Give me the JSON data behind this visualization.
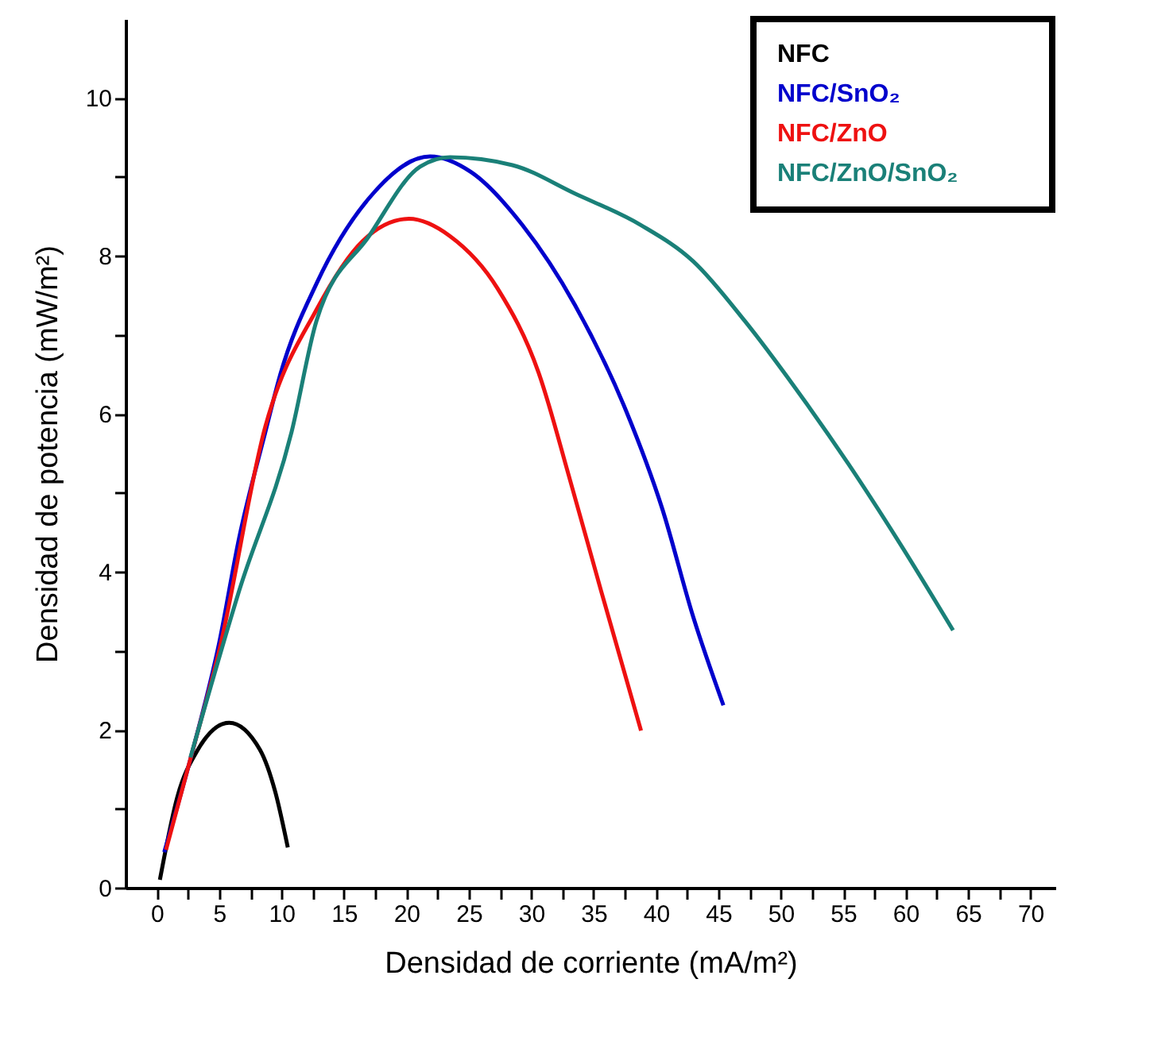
{
  "chart_data": {
    "type": "line",
    "xlabel": "Densidad de corriente (mA/m²)",
    "ylabel": "Densidad de potencia (mW/m²)",
    "xlim": [
      -2.5,
      72
    ],
    "ylim": [
      0,
      11
    ],
    "xticks": [
      0,
      {
        "value": 2.5,
        "label": null
      },
      5,
      {
        "value": 7.5,
        "label": null
      },
      10,
      {
        "value": 12.5,
        "label": null
      },
      15,
      {
        "value": 17.5,
        "label": null
      },
      20,
      {
        "value": 22.5,
        "label": null
      },
      25,
      {
        "value": 27.5,
        "label": null
      },
      30,
      {
        "value": 32.5,
        "label": null
      },
      35,
      {
        "value": 37.5,
        "label": null
      },
      40,
      {
        "value": 42.5,
        "label": null
      },
      45,
      {
        "value": 47.5,
        "label": null
      },
      50,
      {
        "value": 52.5,
        "label": null
      },
      55,
      {
        "value": 57.5,
        "label": null
      },
      60,
      {
        "value": 62.5,
        "label": null
      },
      65,
      {
        "value": 67.5,
        "label": null
      },
      70
    ],
    "yticks": [
      0,
      {
        "value": 1,
        "label": null
      },
      2,
      {
        "value": 3,
        "label": null
      },
      4,
      {
        "value": 5,
        "label": null
      },
      6,
      {
        "value": 7,
        "label": null
      },
      8,
      {
        "value": 9,
        "label": null
      },
      10
    ],
    "grid": false,
    "legend": "top right",
    "marker": "none",
    "line_style": "solid",
    "series": [
      {
        "name": "NFC",
        "color": "#000000",
        "x": [
          0.25,
          1.65,
          3.3,
          5.8,
          8.26,
          9.5,
          10.5
        ],
        "values": [
          0.1,
          1.15,
          1.75,
          2.09,
          1.75,
          1.21,
          0.51
        ]
      },
      {
        "name": "NFC/SnO₂",
        "color": "#0000cc",
        "x": [
          0.6,
          2.9,
          5.0,
          6.6,
          8.7,
          9.9,
          12.8,
          17,
          21.9,
          25.2,
          29.3,
          33.5,
          37.6,
          40.5,
          43,
          45.4
        ],
        "values": [
          0.45,
          1.75,
          3.1,
          4.43,
          5.77,
          6.5,
          7.65,
          8.73,
          9.26,
          9.06,
          8.39,
          7.38,
          6.04,
          4.8,
          3.42,
          2.31
        ]
      },
      {
        "name": "NFC/ZnO",
        "color": "#ee1111",
        "x": [
          0.74,
          2.9,
          5.0,
          8.7,
          12.8,
          16.5,
          20.2,
          23.5,
          27.3,
          30.6,
          33.1,
          35.6,
          38.8
        ],
        "values": [
          0.48,
          1.75,
          3.0,
          5.84,
          7.32,
          8.19,
          8.47,
          8.25,
          7.59,
          6.52,
          5.17,
          3.76,
          1.99
        ]
      },
      {
        "name": "NFC/ZnO/SnO₂",
        "color": "#1a8078",
        "x": [
          2.7,
          6.6,
          10.8,
          12.8,
          17,
          21.1,
          23.5,
          28.5,
          33.5,
          38.8,
          43,
          47.1,
          51.2,
          55.4,
          59.5,
          63.8
        ],
        "values": [
          1.65,
          3.76,
          5.77,
          7.18,
          8.25,
          9.13,
          9.25,
          9.15,
          8.79,
          8.39,
          7.93,
          7.18,
          6.32,
          5.37,
          4.37,
          3.26
        ]
      }
    ]
  }
}
